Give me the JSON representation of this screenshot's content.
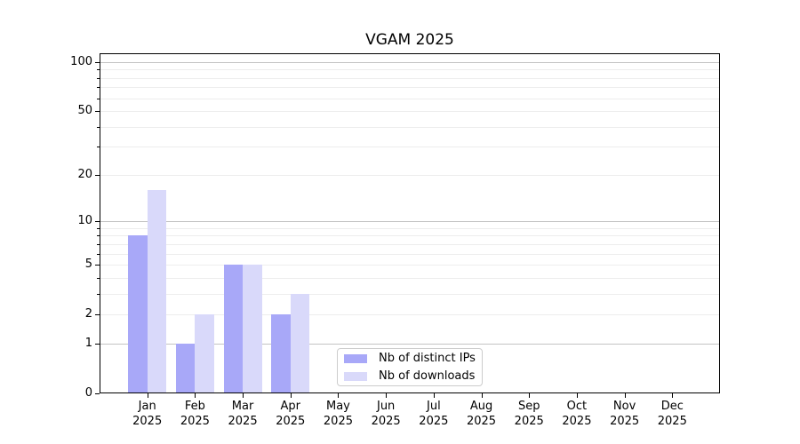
{
  "chart_data": {
    "type": "bar",
    "title": "VGAM 2025",
    "categories": [
      "Jan 2025",
      "Feb 2025",
      "Mar 2025",
      "Apr 2025",
      "May 2025",
      "Jun 2025",
      "Jul 2025",
      "Aug 2025",
      "Sep 2025",
      "Oct 2025",
      "Nov 2025",
      "Dec 2025"
    ],
    "series": [
      {
        "name": "Nb of distinct IPs",
        "color": "#a8a8f8",
        "values": [
          8,
          1,
          5,
          2,
          0,
          0,
          0,
          0,
          0,
          0,
          0,
          0
        ]
      },
      {
        "name": "Nb of downloads",
        "color": "#d9d9fa",
        "values": [
          16,
          2,
          5,
          3,
          0,
          0,
          0,
          0,
          0,
          0,
          0,
          0
        ]
      }
    ],
    "xlabel": "",
    "ylabel": "",
    "yscale": "log1p",
    "ylim": [
      0,
      113
    ],
    "yticks": [
      0,
      1,
      2,
      5,
      10,
      20,
      50,
      100
    ],
    "grid": {
      "enabled": true,
      "major_lines": [
        1,
        10,
        100
      ],
      "minor_lines": [
        2,
        3,
        4,
        5,
        6,
        7,
        8,
        9,
        20,
        30,
        40,
        50,
        60,
        70,
        80,
        90
      ]
    },
    "legend_position": "inside bottom-center"
  },
  "colors": {
    "background": "#ffffff",
    "axis": "#000000",
    "text": "#000000",
    "grid_major": "#c3c3c3",
    "grid_minor": "#ededed",
    "legend_border": "#cccccc",
    "legend_background": "#ffffff"
  }
}
